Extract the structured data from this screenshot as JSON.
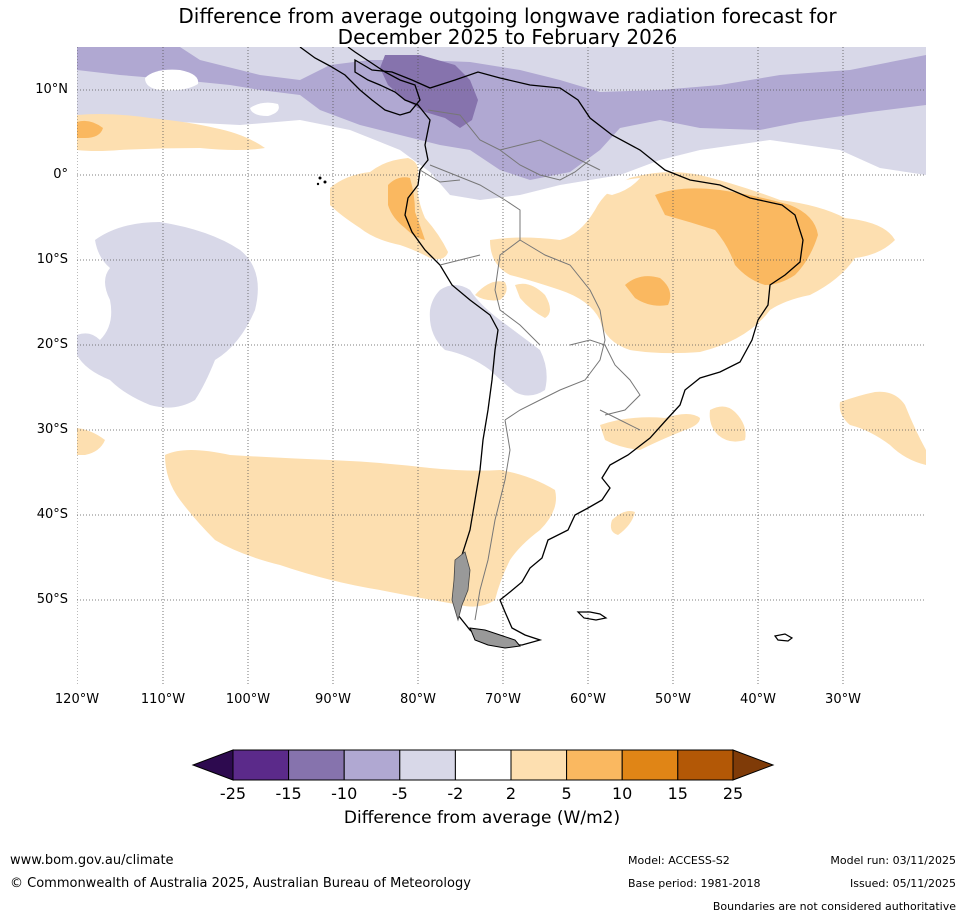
{
  "title": {
    "line1": "Difference from average outgoing longwave radiation forecast for",
    "line2": "December 2025 to February 2026"
  },
  "map": {
    "region": "South America",
    "lat_labels": [
      "10°N",
      "0°",
      "10°S",
      "20°S",
      "30°S",
      "40°S",
      "50°S"
    ],
    "lon_labels": [
      "120°W",
      "110°W",
      "100°W",
      "90°W",
      "80°W",
      "70°W",
      "60°W",
      "50°W",
      "40°W",
      "30°W"
    ]
  },
  "colorbar": {
    "ticks": [
      "-25",
      "-15",
      "-10",
      "-5",
      "-2",
      "2",
      "5",
      "10",
      "15",
      "25"
    ],
    "colors": [
      "#2d0a4f",
      "#5b2a8a",
      "#8673ad",
      "#b0a8d2",
      "#d8d8e8",
      "#ffffff",
      "#fddfb0",
      "#fab860",
      "#e08516",
      "#b35806",
      "#7f3b08"
    ],
    "label": "Difference from average (W/m2)"
  },
  "footer": {
    "website": "www.bom.gov.au/climate",
    "copyright": "© Commonwealth of Australia 2025, Australian Bureau of Meteorology",
    "model": "Model: ACCESS-S2",
    "model_run": "Model run: 03/11/2025",
    "base_period": "Base period: 1981-2018",
    "issued": "Issued: 05/11/2025",
    "disclaimer": "Boundaries are not considered authoritative"
  }
}
